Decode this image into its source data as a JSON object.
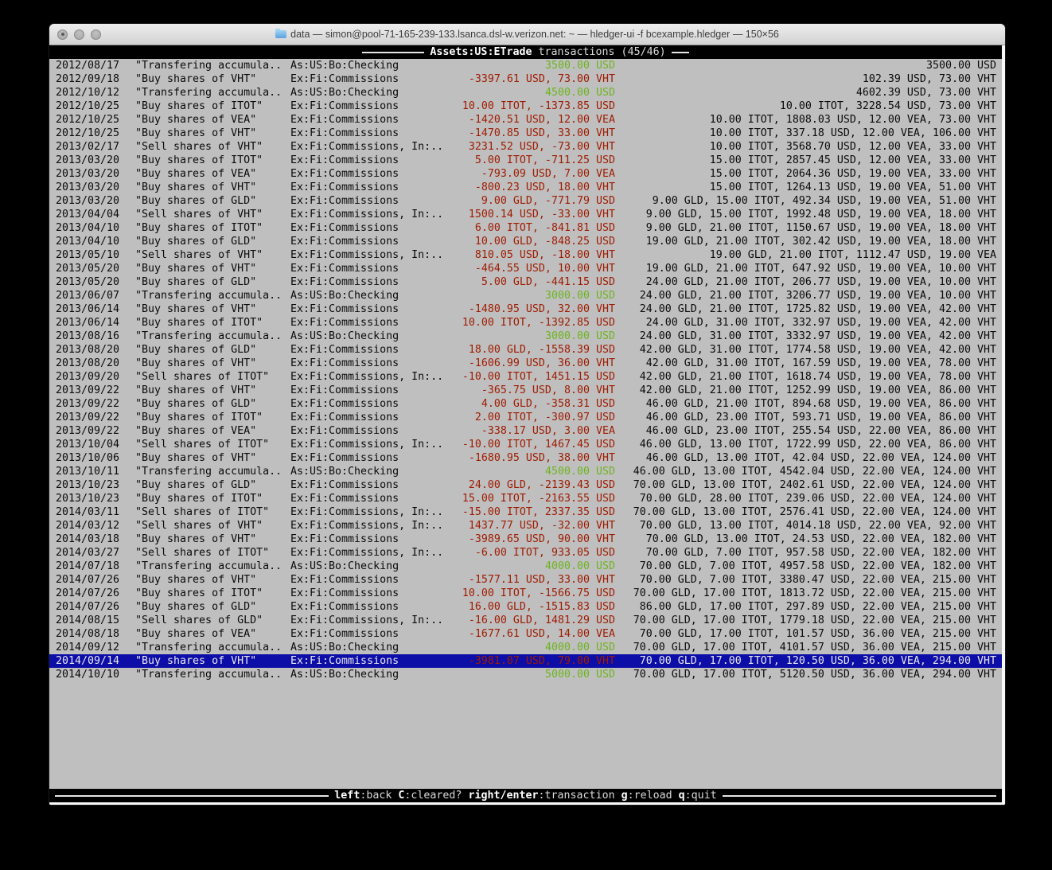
{
  "colors": {
    "red": "#9f1b00",
    "green": "#6eb41f",
    "selection_bg": "#0d0da8",
    "terminal_bg": "#bfbfbf",
    "bar_bg": "#000000"
  },
  "window": {
    "title": "data — simon@pool-71-165-239-133.lsanca.dsl-w.verizon.net: ~ — hledger-ui -f bcexample.hledger — 150×56"
  },
  "screen_header": {
    "account": "Assets:US:ETrade",
    "subtitle": " transactions (45/46)"
  },
  "status_bar": {
    "hints": [
      {
        "key": "left",
        "label": "back"
      },
      {
        "key": "C",
        "label": "cleared?"
      },
      {
        "key": "right/enter",
        "label": "transaction"
      },
      {
        "key": "g",
        "label": "reload"
      },
      {
        "key": "q",
        "label": "quit"
      }
    ]
  },
  "transactions": [
    {
      "date": "2012/08/17",
      "description": "\"Transfering accumula..",
      "accounts": "As:US:Bo:Checking",
      "change": "3500.00 USD",
      "change_color": "pos",
      "balance": "3500.00 USD",
      "selected": false
    },
    {
      "date": "2012/09/18",
      "description": "\"Buy shares of VHT\"",
      "accounts": "Ex:Fi:Commissions",
      "change": "-3397.61 USD, 73.00 VHT",
      "change_color": "neg",
      "balance": "102.39 USD, 73.00 VHT",
      "selected": false
    },
    {
      "date": "2012/10/12",
      "description": "\"Transfering accumula..",
      "accounts": "As:US:Bo:Checking",
      "change": "4500.00 USD",
      "change_color": "pos",
      "balance": "4602.39 USD, 73.00 VHT",
      "selected": false
    },
    {
      "date": "2012/10/25",
      "description": "\"Buy shares of ITOT\"",
      "accounts": "Ex:Fi:Commissions",
      "change": "10.00 ITOT, -1373.85 USD",
      "change_color": "neg",
      "balance": "10.00 ITOT, 3228.54 USD, 73.00 VHT",
      "selected": false
    },
    {
      "date": "2012/10/25",
      "description": "\"Buy shares of VEA\"",
      "accounts": "Ex:Fi:Commissions",
      "change": "-1420.51 USD, 12.00 VEA",
      "change_color": "neg",
      "balance": "10.00 ITOT, 1808.03 USD, 12.00 VEA, 73.00 VHT",
      "selected": false
    },
    {
      "date": "2012/10/25",
      "description": "\"Buy shares of VHT\"",
      "accounts": "Ex:Fi:Commissions",
      "change": "-1470.85 USD, 33.00 VHT",
      "change_color": "neg",
      "balance": "10.00 ITOT, 337.18 USD, 12.00 VEA, 106.00 VHT",
      "selected": false
    },
    {
      "date": "2013/02/17",
      "description": "\"Sell shares of VHT\"",
      "accounts": "Ex:Fi:Commissions, In:..",
      "change": "3231.52 USD, -73.00 VHT",
      "change_color": "neg",
      "balance": "10.00 ITOT, 3568.70 USD, 12.00 VEA, 33.00 VHT",
      "selected": false
    },
    {
      "date": "2013/03/20",
      "description": "\"Buy shares of ITOT\"",
      "accounts": "Ex:Fi:Commissions",
      "change": "5.00 ITOT, -711.25 USD",
      "change_color": "neg",
      "balance": "15.00 ITOT, 2857.45 USD, 12.00 VEA, 33.00 VHT",
      "selected": false
    },
    {
      "date": "2013/03/20",
      "description": "\"Buy shares of VEA\"",
      "accounts": "Ex:Fi:Commissions",
      "change": "-793.09 USD, 7.00 VEA",
      "change_color": "neg",
      "balance": "15.00 ITOT, 2064.36 USD, 19.00 VEA, 33.00 VHT",
      "selected": false
    },
    {
      "date": "2013/03/20",
      "description": "\"Buy shares of VHT\"",
      "accounts": "Ex:Fi:Commissions",
      "change": "-800.23 USD, 18.00 VHT",
      "change_color": "neg",
      "balance": "15.00 ITOT, 1264.13 USD, 19.00 VEA, 51.00 VHT",
      "selected": false
    },
    {
      "date": "2013/03/20",
      "description": "\"Buy shares of GLD\"",
      "accounts": "Ex:Fi:Commissions",
      "change": "9.00 GLD, -771.79 USD",
      "change_color": "neg",
      "balance": "9.00 GLD, 15.00 ITOT, 492.34 USD, 19.00 VEA, 51.00 VHT",
      "selected": false
    },
    {
      "date": "2013/04/04",
      "description": "\"Sell shares of VHT\"",
      "accounts": "Ex:Fi:Commissions, In:..",
      "change": "1500.14 USD, -33.00 VHT",
      "change_color": "neg",
      "balance": "9.00 GLD, 15.00 ITOT, 1992.48 USD, 19.00 VEA, 18.00 VHT",
      "selected": false
    },
    {
      "date": "2013/04/10",
      "description": "\"Buy shares of ITOT\"",
      "accounts": "Ex:Fi:Commissions",
      "change": "6.00 ITOT, -841.81 USD",
      "change_color": "neg",
      "balance": "9.00 GLD, 21.00 ITOT, 1150.67 USD, 19.00 VEA, 18.00 VHT",
      "selected": false
    },
    {
      "date": "2013/04/10",
      "description": "\"Buy shares of GLD\"",
      "accounts": "Ex:Fi:Commissions",
      "change": "10.00 GLD, -848.25 USD",
      "change_color": "neg",
      "balance": "19.00 GLD, 21.00 ITOT, 302.42 USD, 19.00 VEA, 18.00 VHT",
      "selected": false
    },
    {
      "date": "2013/05/10",
      "description": "\"Sell shares of VHT\"",
      "accounts": "Ex:Fi:Commissions, In:..",
      "change": "810.05 USD, -18.00 VHT",
      "change_color": "neg",
      "balance": "19.00 GLD, 21.00 ITOT, 1112.47 USD, 19.00 VEA",
      "selected": false
    },
    {
      "date": "2013/05/20",
      "description": "\"Buy shares of VHT\"",
      "accounts": "Ex:Fi:Commissions",
      "change": "-464.55 USD, 10.00 VHT",
      "change_color": "neg",
      "balance": "19.00 GLD, 21.00 ITOT, 647.92 USD, 19.00 VEA, 10.00 VHT",
      "selected": false
    },
    {
      "date": "2013/05/20",
      "description": "\"Buy shares of GLD\"",
      "accounts": "Ex:Fi:Commissions",
      "change": "5.00 GLD, -441.15 USD",
      "change_color": "neg",
      "balance": "24.00 GLD, 21.00 ITOT, 206.77 USD, 19.00 VEA, 10.00 VHT",
      "selected": false
    },
    {
      "date": "2013/06/07",
      "description": "\"Transfering accumula..",
      "accounts": "As:US:Bo:Checking",
      "change": "3000.00 USD",
      "change_color": "pos",
      "balance": "24.00 GLD, 21.00 ITOT, 3206.77 USD, 19.00 VEA, 10.00 VHT",
      "selected": false
    },
    {
      "date": "2013/06/14",
      "description": "\"Buy shares of VHT\"",
      "accounts": "Ex:Fi:Commissions",
      "change": "-1480.95 USD, 32.00 VHT",
      "change_color": "neg",
      "balance": "24.00 GLD, 21.00 ITOT, 1725.82 USD, 19.00 VEA, 42.00 VHT",
      "selected": false
    },
    {
      "date": "2013/06/14",
      "description": "\"Buy shares of ITOT\"",
      "accounts": "Ex:Fi:Commissions",
      "change": "10.00 ITOT, -1392.85 USD",
      "change_color": "neg",
      "balance": "24.00 GLD, 31.00 ITOT, 332.97 USD, 19.00 VEA, 42.00 VHT",
      "selected": false
    },
    {
      "date": "2013/08/16",
      "description": "\"Transfering accumula..",
      "accounts": "As:US:Bo:Checking",
      "change": "3000.00 USD",
      "change_color": "pos",
      "balance": "24.00 GLD, 31.00 ITOT, 3332.97 USD, 19.00 VEA, 42.00 VHT",
      "selected": false
    },
    {
      "date": "2013/08/20",
      "description": "\"Buy shares of GLD\"",
      "accounts": "Ex:Fi:Commissions",
      "change": "18.00 GLD, -1558.39 USD",
      "change_color": "neg",
      "balance": "42.00 GLD, 31.00 ITOT, 1774.58 USD, 19.00 VEA, 42.00 VHT",
      "selected": false
    },
    {
      "date": "2013/08/20",
      "description": "\"Buy shares of VHT\"",
      "accounts": "Ex:Fi:Commissions",
      "change": "-1606.99 USD, 36.00 VHT",
      "change_color": "neg",
      "balance": "42.00 GLD, 31.00 ITOT, 167.59 USD, 19.00 VEA, 78.00 VHT",
      "selected": false
    },
    {
      "date": "2013/09/20",
      "description": "\"Sell shares of ITOT\"",
      "accounts": "Ex:Fi:Commissions, In:..",
      "change": "-10.00 ITOT, 1451.15 USD",
      "change_color": "neg",
      "balance": "42.00 GLD, 21.00 ITOT, 1618.74 USD, 19.00 VEA, 78.00 VHT",
      "selected": false
    },
    {
      "date": "2013/09/22",
      "description": "\"Buy shares of VHT\"",
      "accounts": "Ex:Fi:Commissions",
      "change": "-365.75 USD, 8.00 VHT",
      "change_color": "neg",
      "balance": "42.00 GLD, 21.00 ITOT, 1252.99 USD, 19.00 VEA, 86.00 VHT",
      "selected": false
    },
    {
      "date": "2013/09/22",
      "description": "\"Buy shares of GLD\"",
      "accounts": "Ex:Fi:Commissions",
      "change": "4.00 GLD, -358.31 USD",
      "change_color": "neg",
      "balance": "46.00 GLD, 21.00 ITOT, 894.68 USD, 19.00 VEA, 86.00 VHT",
      "selected": false
    },
    {
      "date": "2013/09/22",
      "description": "\"Buy shares of ITOT\"",
      "accounts": "Ex:Fi:Commissions",
      "change": "2.00 ITOT, -300.97 USD",
      "change_color": "neg",
      "balance": "46.00 GLD, 23.00 ITOT, 593.71 USD, 19.00 VEA, 86.00 VHT",
      "selected": false
    },
    {
      "date": "2013/09/22",
      "description": "\"Buy shares of VEA\"",
      "accounts": "Ex:Fi:Commissions",
      "change": "-338.17 USD, 3.00 VEA",
      "change_color": "neg",
      "balance": "46.00 GLD, 23.00 ITOT, 255.54 USD, 22.00 VEA, 86.00 VHT",
      "selected": false
    },
    {
      "date": "2013/10/04",
      "description": "\"Sell shares of ITOT\"",
      "accounts": "Ex:Fi:Commissions, In:..",
      "change": "-10.00 ITOT, 1467.45 USD",
      "change_color": "neg",
      "balance": "46.00 GLD, 13.00 ITOT, 1722.99 USD, 22.00 VEA, 86.00 VHT",
      "selected": false
    },
    {
      "date": "2013/10/06",
      "description": "\"Buy shares of VHT\"",
      "accounts": "Ex:Fi:Commissions",
      "change": "-1680.95 USD, 38.00 VHT",
      "change_color": "neg",
      "balance": "46.00 GLD, 13.00 ITOT, 42.04 USD, 22.00 VEA, 124.00 VHT",
      "selected": false
    },
    {
      "date": "2013/10/11",
      "description": "\"Transfering accumula..",
      "accounts": "As:US:Bo:Checking",
      "change": "4500.00 USD",
      "change_color": "pos",
      "balance": "46.00 GLD, 13.00 ITOT, 4542.04 USD, 22.00 VEA, 124.00 VHT",
      "selected": false
    },
    {
      "date": "2013/10/23",
      "description": "\"Buy shares of GLD\"",
      "accounts": "Ex:Fi:Commissions",
      "change": "24.00 GLD, -2139.43 USD",
      "change_color": "neg",
      "balance": "70.00 GLD, 13.00 ITOT, 2402.61 USD, 22.00 VEA, 124.00 VHT",
      "selected": false
    },
    {
      "date": "2013/10/23",
      "description": "\"Buy shares of ITOT\"",
      "accounts": "Ex:Fi:Commissions",
      "change": "15.00 ITOT, -2163.55 USD",
      "change_color": "neg",
      "balance": "70.00 GLD, 28.00 ITOT, 239.06 USD, 22.00 VEA, 124.00 VHT",
      "selected": false
    },
    {
      "date": "2014/03/11",
      "description": "\"Sell shares of ITOT\"",
      "accounts": "Ex:Fi:Commissions, In:..",
      "change": "-15.00 ITOT, 2337.35 USD",
      "change_color": "neg",
      "balance": "70.00 GLD, 13.00 ITOT, 2576.41 USD, 22.00 VEA, 124.00 VHT",
      "selected": false
    },
    {
      "date": "2014/03/12",
      "description": "\"Sell shares of VHT\"",
      "accounts": "Ex:Fi:Commissions, In:..",
      "change": "1437.77 USD, -32.00 VHT",
      "change_color": "neg",
      "balance": "70.00 GLD, 13.00 ITOT, 4014.18 USD, 22.00 VEA, 92.00 VHT",
      "selected": false
    },
    {
      "date": "2014/03/18",
      "description": "\"Buy shares of VHT\"",
      "accounts": "Ex:Fi:Commissions",
      "change": "-3989.65 USD, 90.00 VHT",
      "change_color": "neg",
      "balance": "70.00 GLD, 13.00 ITOT, 24.53 USD, 22.00 VEA, 182.00 VHT",
      "selected": false
    },
    {
      "date": "2014/03/27",
      "description": "\"Sell shares of ITOT\"",
      "accounts": "Ex:Fi:Commissions, In:..",
      "change": "-6.00 ITOT, 933.05 USD",
      "change_color": "neg",
      "balance": "70.00 GLD, 7.00 ITOT, 957.58 USD, 22.00 VEA, 182.00 VHT",
      "selected": false
    },
    {
      "date": "2014/07/18",
      "description": "\"Transfering accumula..",
      "accounts": "As:US:Bo:Checking",
      "change": "4000.00 USD",
      "change_color": "pos",
      "balance": "70.00 GLD, 7.00 ITOT, 4957.58 USD, 22.00 VEA, 182.00 VHT",
      "selected": false
    },
    {
      "date": "2014/07/26",
      "description": "\"Buy shares of VHT\"",
      "accounts": "Ex:Fi:Commissions",
      "change": "-1577.11 USD, 33.00 VHT",
      "change_color": "neg",
      "balance": "70.00 GLD, 7.00 ITOT, 3380.47 USD, 22.00 VEA, 215.00 VHT",
      "selected": false
    },
    {
      "date": "2014/07/26",
      "description": "\"Buy shares of ITOT\"",
      "accounts": "Ex:Fi:Commissions",
      "change": "10.00 ITOT, -1566.75 USD",
      "change_color": "neg",
      "balance": "70.00 GLD, 17.00 ITOT, 1813.72 USD, 22.00 VEA, 215.00 VHT",
      "selected": false
    },
    {
      "date": "2014/07/26",
      "description": "\"Buy shares of GLD\"",
      "accounts": "Ex:Fi:Commissions",
      "change": "16.00 GLD, -1515.83 USD",
      "change_color": "neg",
      "balance": "86.00 GLD, 17.00 ITOT, 297.89 USD, 22.00 VEA, 215.00 VHT",
      "selected": false
    },
    {
      "date": "2014/08/15",
      "description": "\"Sell shares of GLD\"",
      "accounts": "Ex:Fi:Commissions, In:..",
      "change": "-16.00 GLD, 1481.29 USD",
      "change_color": "neg",
      "balance": "70.00 GLD, 17.00 ITOT, 1779.18 USD, 22.00 VEA, 215.00 VHT",
      "selected": false
    },
    {
      "date": "2014/08/18",
      "description": "\"Buy shares of VEA\"",
      "accounts": "Ex:Fi:Commissions",
      "change": "-1677.61 USD, 14.00 VEA",
      "change_color": "neg",
      "balance": "70.00 GLD, 17.00 ITOT, 101.57 USD, 36.00 VEA, 215.00 VHT",
      "selected": false
    },
    {
      "date": "2014/09/12",
      "description": "\"Transfering accumula..",
      "accounts": "As:US:Bo:Checking",
      "change": "4000.00 USD",
      "change_color": "pos",
      "balance": "70.00 GLD, 17.00 ITOT, 4101.57 USD, 36.00 VEA, 215.00 VHT",
      "selected": false
    },
    {
      "date": "2014/09/14",
      "description": "\"Buy shares of VHT\"",
      "accounts": "Ex:Fi:Commissions",
      "change": "-3981.07 USD, 79.00 VHT",
      "change_color": "neg",
      "balance": "70.00 GLD, 17.00 ITOT, 120.50 USD, 36.00 VEA, 294.00 VHT",
      "selected": true
    },
    {
      "date": "2014/10/10",
      "description": "\"Transfering accumula..",
      "accounts": "As:US:Bo:Checking",
      "change": "5000.00 USD",
      "change_color": "pos",
      "balance": "70.00 GLD, 17.00 ITOT, 5120.50 USD, 36.00 VEA, 294.00 VHT",
      "selected": false
    }
  ]
}
